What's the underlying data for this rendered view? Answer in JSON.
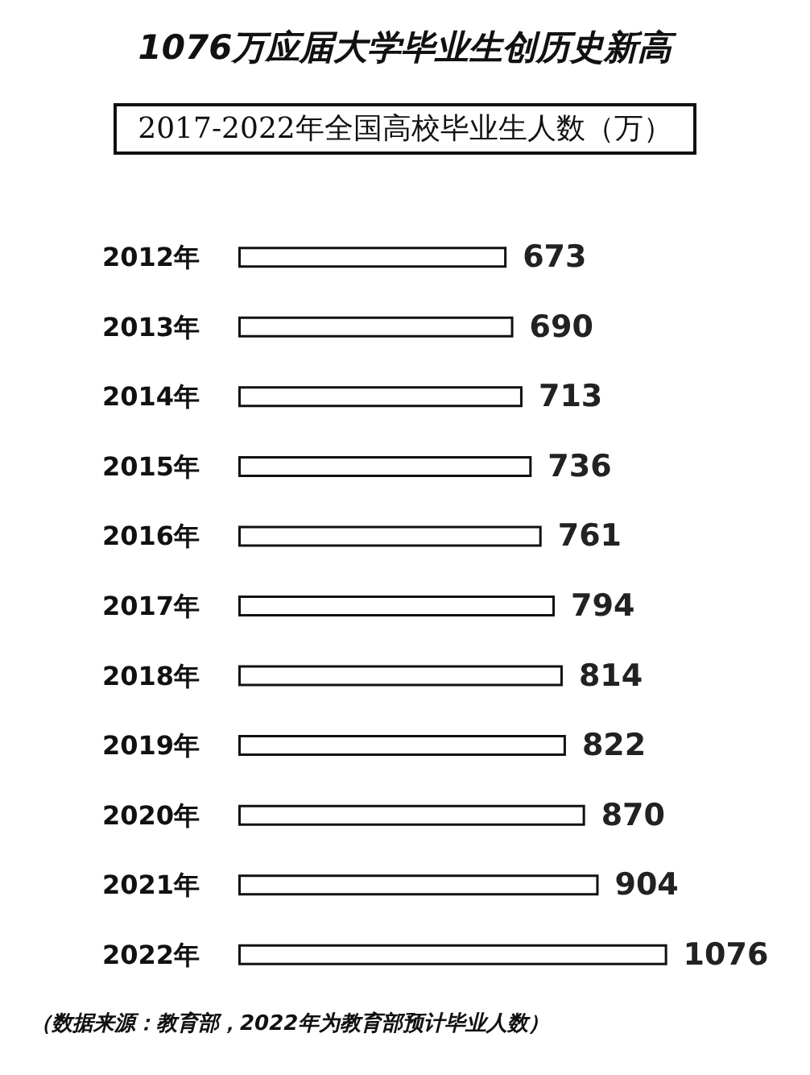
{
  "chart_data": {
    "type": "bar",
    "orientation": "horizontal",
    "title": "1076万应届大学毕业生创历史新高",
    "subtitle": "2017-2022年全国高校毕业生人数（万）",
    "categories": [
      "2012年",
      "2013年",
      "2014年",
      "2015年",
      "2016年",
      "2017年",
      "2018年",
      "2019年",
      "2020年",
      "2021年",
      "2022年"
    ],
    "values": [
      673,
      690,
      713,
      736,
      761,
      794,
      814,
      822,
      870,
      904,
      1076
    ],
    "color": "#ffffff",
    "data_labels": true,
    "grid": false,
    "annotations": [
      "（数据来源：教育部，2022年为教育部预计毕业人数）"
    ]
  }
}
